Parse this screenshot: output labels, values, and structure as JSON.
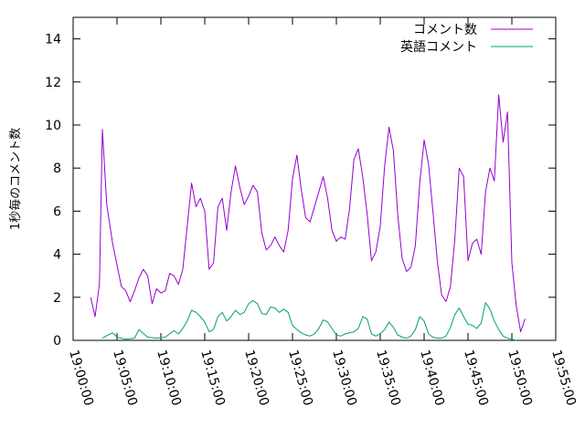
{
  "chart_data": {
    "type": "line",
    "title": "",
    "xlabel": "",
    "ylabel": "1秒毎のコメント数",
    "grid": false,
    "legend": "top-right",
    "x_ticks": [
      "19:00:00",
      "19:05:00",
      "19:10:00",
      "19:15:00",
      "19:20:00",
      "19:25:00",
      "19:30:00",
      "19:35:00",
      "19:40:00",
      "19:45:00",
      "19:50:00",
      "19:55:00"
    ],
    "y_ticks": [
      "0",
      "2",
      "4",
      "6",
      "8",
      "10",
      "12",
      "14"
    ],
    "xlim": [
      "19:00:00",
      "19:55:00"
    ],
    "ylim": [
      0,
      15
    ],
    "series": [
      {
        "name": "コメント数",
        "color": "#9400d3",
        "points": [
          [
            "19:02:00",
            2.0
          ],
          [
            "19:02:30",
            1.1
          ],
          [
            "19:03:00",
            2.6
          ],
          [
            "19:03:20",
            9.8
          ],
          [
            "19:03:50",
            6.3
          ],
          [
            "19:04:30",
            4.5
          ],
          [
            "19:05:00",
            3.5
          ],
          [
            "19:05:30",
            2.5
          ],
          [
            "19:06:00",
            2.3
          ],
          [
            "19:06:30",
            1.8
          ],
          [
            "19:07:00",
            2.3
          ],
          [
            "19:07:30",
            2.9
          ],
          [
            "19:08:00",
            3.3
          ],
          [
            "19:08:30",
            3.0
          ],
          [
            "19:09:00",
            1.7
          ],
          [
            "19:09:30",
            2.4
          ],
          [
            "19:10:00",
            2.2
          ],
          [
            "19:10:30",
            2.3
          ],
          [
            "19:11:00",
            3.1
          ],
          [
            "19:11:30",
            3.0
          ],
          [
            "19:12:00",
            2.6
          ],
          [
            "19:12:30",
            3.3
          ],
          [
            "19:13:00",
            5.3
          ],
          [
            "19:13:30",
            7.3
          ],
          [
            "19:14:00",
            6.2
          ],
          [
            "19:14:30",
            6.6
          ],
          [
            "19:15:00",
            6.0
          ],
          [
            "19:15:30",
            3.3
          ],
          [
            "19:16:00",
            3.6
          ],
          [
            "19:16:30",
            6.2
          ],
          [
            "19:17:00",
            6.6
          ],
          [
            "19:17:30",
            5.1
          ],
          [
            "19:18:00",
            6.9
          ],
          [
            "19:18:30",
            8.1
          ],
          [
            "19:19:00",
            7.1
          ],
          [
            "19:19:30",
            6.3
          ],
          [
            "19:20:00",
            6.7
          ],
          [
            "19:20:30",
            7.2
          ],
          [
            "19:21:00",
            6.9
          ],
          [
            "19:21:30",
            5.0
          ],
          [
            "19:22:00",
            4.2
          ],
          [
            "19:22:30",
            4.4
          ],
          [
            "19:23:00",
            4.8
          ],
          [
            "19:23:30",
            4.4
          ],
          [
            "19:24:00",
            4.1
          ],
          [
            "19:24:30",
            5.1
          ],
          [
            "19:25:00",
            7.5
          ],
          [
            "19:25:30",
            8.6
          ],
          [
            "19:26:00",
            7.0
          ],
          [
            "19:26:30",
            5.7
          ],
          [
            "19:27:00",
            5.5
          ],
          [
            "19:27:30",
            6.2
          ],
          [
            "19:28:00",
            6.9
          ],
          [
            "19:28:30",
            7.6
          ],
          [
            "19:29:00",
            6.6
          ],
          [
            "19:29:30",
            5.1
          ],
          [
            "19:30:00",
            4.6
          ],
          [
            "19:30:30",
            4.8
          ],
          [
            "19:31:00",
            4.7
          ],
          [
            "19:31:30",
            6.1
          ],
          [
            "19:32:00",
            8.4
          ],
          [
            "19:32:30",
            8.9
          ],
          [
            "19:33:00",
            7.6
          ],
          [
            "19:33:30",
            5.9
          ],
          [
            "19:34:00",
            3.7
          ],
          [
            "19:34:30",
            4.1
          ],
          [
            "19:35:00",
            5.3
          ],
          [
            "19:35:30",
            8.1
          ],
          [
            "19:36:00",
            9.9
          ],
          [
            "19:36:30",
            8.8
          ],
          [
            "19:37:00",
            5.8
          ],
          [
            "19:37:30",
            3.8
          ],
          [
            "19:38:00",
            3.2
          ],
          [
            "19:38:30",
            3.4
          ],
          [
            "19:39:00",
            4.4
          ],
          [
            "19:39:30",
            7.3
          ],
          [
            "19:40:00",
            9.3
          ],
          [
            "19:40:30",
            8.2
          ],
          [
            "19:41:00",
            6.0
          ],
          [
            "19:41:30",
            3.7
          ],
          [
            "19:42:00",
            2.1
          ],
          [
            "19:42:30",
            1.8
          ],
          [
            "19:43:00",
            2.5
          ],
          [
            "19:43:30",
            4.7
          ],
          [
            "19:44:00",
            8.0
          ],
          [
            "19:44:30",
            7.6
          ],
          [
            "19:45:00",
            3.7
          ],
          [
            "19:45:30",
            4.5
          ],
          [
            "19:46:00",
            4.7
          ],
          [
            "19:46:30",
            4.0
          ],
          [
            "19:47:00",
            6.9
          ],
          [
            "19:47:30",
            8.0
          ],
          [
            "19:48:00",
            7.4
          ],
          [
            "19:48:30",
            11.4
          ],
          [
            "19:49:00",
            9.2
          ],
          [
            "19:49:30",
            10.6
          ],
          [
            "19:50:00",
            3.6
          ],
          [
            "19:50:30",
            1.6
          ],
          [
            "19:51:00",
            0.4
          ],
          [
            "19:51:30",
            1.0
          ]
        ]
      },
      {
        "name": "英語コメント",
        "color": "#009e73",
        "points": [
          [
            "19:03:20",
            0.1
          ],
          [
            "19:04:00",
            0.25
          ],
          [
            "19:04:30",
            0.35
          ],
          [
            "19:05:00",
            0.15
          ],
          [
            "19:06:00",
            0.05
          ],
          [
            "19:07:00",
            0.1
          ],
          [
            "19:07:30",
            0.5
          ],
          [
            "19:08:30",
            0.15
          ],
          [
            "19:09:30",
            0.1
          ],
          [
            "19:10:30",
            0.15
          ],
          [
            "19:11:00",
            0.3
          ],
          [
            "19:11:30",
            0.45
          ],
          [
            "19:12:00",
            0.3
          ],
          [
            "19:12:30",
            0.55
          ],
          [
            "19:13:00",
            0.9
          ],
          [
            "19:13:30",
            1.4
          ],
          [
            "19:14:00",
            1.3
          ],
          [
            "19:14:30",
            1.1
          ],
          [
            "19:15:00",
            0.85
          ],
          [
            "19:15:30",
            0.4
          ],
          [
            "19:16:00",
            0.5
          ],
          [
            "19:16:30",
            1.1
          ],
          [
            "19:17:00",
            1.3
          ],
          [
            "19:17:30",
            0.9
          ],
          [
            "19:18:00",
            1.1
          ],
          [
            "19:18:30",
            1.4
          ],
          [
            "19:19:00",
            1.2
          ],
          [
            "19:19:30",
            1.3
          ],
          [
            "19:20:00",
            1.7
          ],
          [
            "19:20:30",
            1.85
          ],
          [
            "19:21:00",
            1.7
          ],
          [
            "19:21:30",
            1.25
          ],
          [
            "19:22:00",
            1.2
          ],
          [
            "19:22:30",
            1.55
          ],
          [
            "19:23:00",
            1.5
          ],
          [
            "19:23:30",
            1.3
          ],
          [
            "19:24:00",
            1.45
          ],
          [
            "19:24:30",
            1.3
          ],
          [
            "19:25:00",
            0.7
          ],
          [
            "19:25:30",
            0.5
          ],
          [
            "19:26:00",
            0.35
          ],
          [
            "19:26:30",
            0.25
          ],
          [
            "19:27:00",
            0.2
          ],
          [
            "19:27:30",
            0.3
          ],
          [
            "19:28:00",
            0.55
          ],
          [
            "19:28:30",
            0.95
          ],
          [
            "19:29:00",
            0.85
          ],
          [
            "19:29:30",
            0.55
          ],
          [
            "19:30:00",
            0.25
          ],
          [
            "19:30:30",
            0.2
          ],
          [
            "19:31:00",
            0.3
          ],
          [
            "19:31:30",
            0.35
          ],
          [
            "19:32:00",
            0.4
          ],
          [
            "19:32:30",
            0.55
          ],
          [
            "19:33:00",
            1.1
          ],
          [
            "19:33:30",
            1.0
          ],
          [
            "19:34:00",
            0.3
          ],
          [
            "19:34:30",
            0.2
          ],
          [
            "19:35:00",
            0.3
          ],
          [
            "19:35:30",
            0.5
          ],
          [
            "19:36:00",
            0.85
          ],
          [
            "19:36:30",
            0.6
          ],
          [
            "19:37:00",
            0.25
          ],
          [
            "19:37:30",
            0.15
          ],
          [
            "19:38:00",
            0.1
          ],
          [
            "19:38:30",
            0.2
          ],
          [
            "19:39:00",
            0.5
          ],
          [
            "19:39:30",
            1.1
          ],
          [
            "19:40:00",
            0.9
          ],
          [
            "19:40:30",
            0.3
          ],
          [
            "19:41:00",
            0.15
          ],
          [
            "19:41:30",
            0.1
          ],
          [
            "19:42:00",
            0.1
          ],
          [
            "19:42:30",
            0.2
          ],
          [
            "19:43:00",
            0.6
          ],
          [
            "19:43:30",
            1.2
          ],
          [
            "19:44:00",
            1.5
          ],
          [
            "19:44:30",
            1.1
          ],
          [
            "19:45:00",
            0.75
          ],
          [
            "19:45:30",
            0.7
          ],
          [
            "19:46:00",
            0.55
          ],
          [
            "19:46:30",
            0.8
          ],
          [
            "19:47:00",
            1.75
          ],
          [
            "19:47:30",
            1.45
          ],
          [
            "19:48:00",
            0.9
          ],
          [
            "19:48:30",
            0.5
          ],
          [
            "19:49:00",
            0.2
          ],
          [
            "19:49:30",
            0.1
          ],
          [
            "19:50:00",
            0.05
          ],
          [
            "19:50:30",
            0.0
          ]
        ]
      }
    ]
  }
}
